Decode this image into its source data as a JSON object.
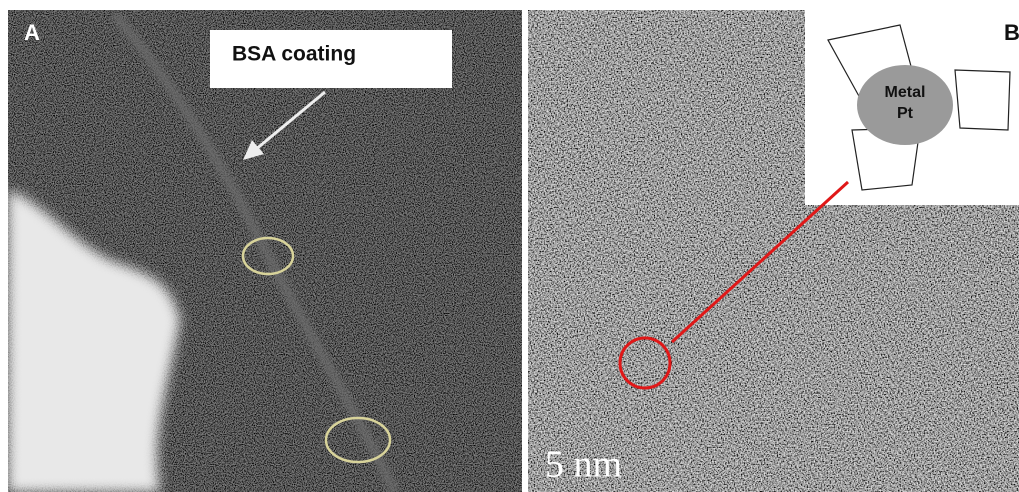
{
  "panels": [
    {
      "label": "A",
      "annotation": "BSA coating"
    },
    {
      "label": "B",
      "inset": {
        "core_label": [
          "Metal",
          "Pt"
        ]
      },
      "scale_bar": "5 nm"
    }
  ]
}
